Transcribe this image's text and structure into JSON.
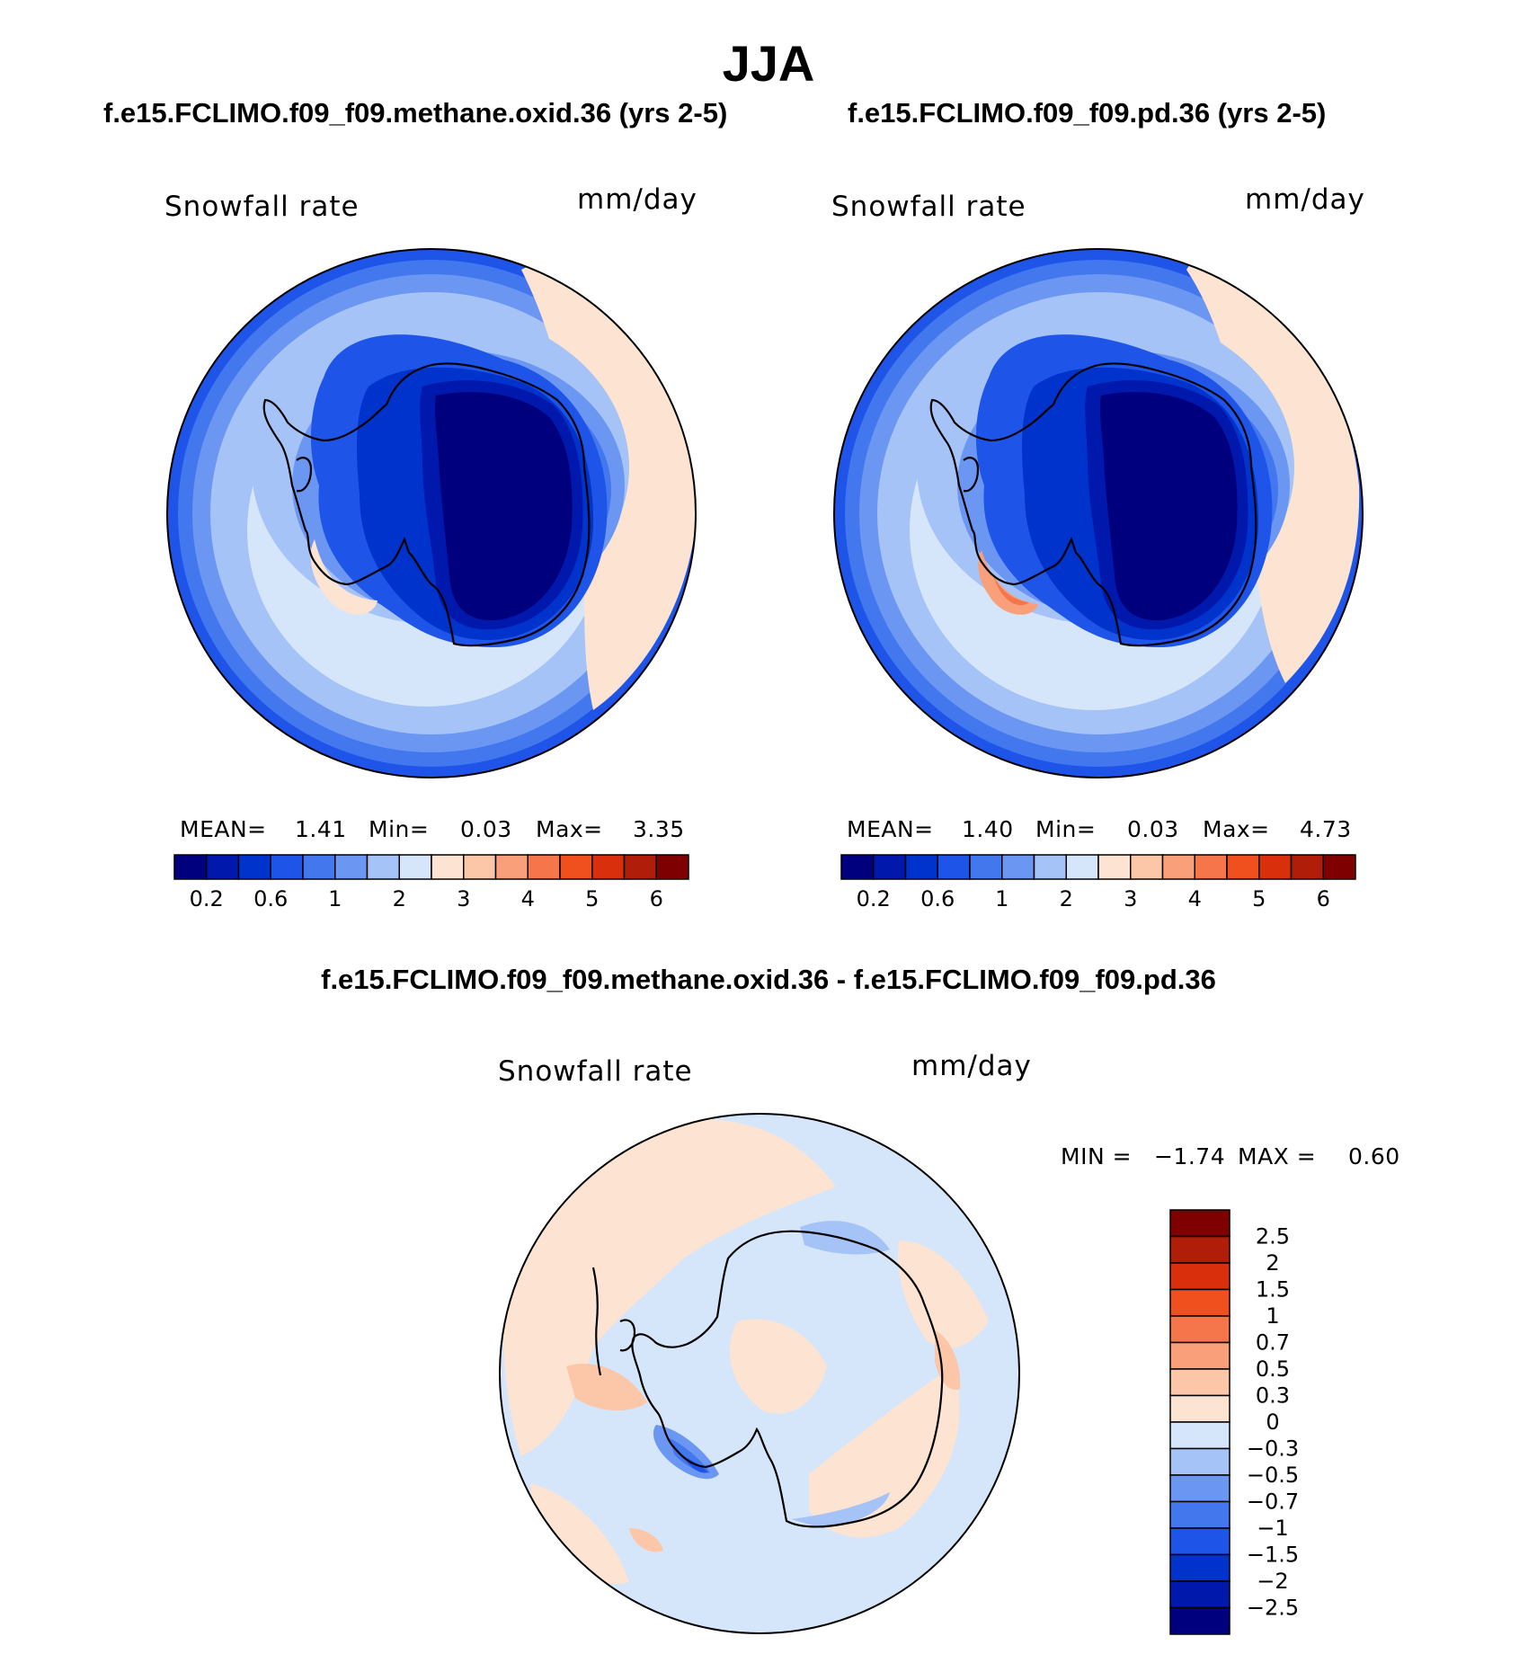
{
  "title": "JJA",
  "panels": [
    {
      "title": "f.e15.FCLIMO.f09_f09.methane.oxid.36 (yrs 2-5)",
      "variable": "Snowfall rate",
      "units": "mm/day",
      "stats": {
        "mean_label": "MEAN=",
        "mean": "1.41",
        "min_label": "Min=",
        "min": "0.03",
        "max_label": "Max=",
        "max": "3.35"
      },
      "colorbar_labels": [
        "0.2",
        "0.6",
        "1",
        "2",
        "3",
        "4",
        "5",
        "6"
      ]
    },
    {
      "title": "f.e15.FCLIMO.f09_f09.pd.36 (yrs 2-5)",
      "variable": "Snowfall rate",
      "units": "mm/day",
      "stats": {
        "mean_label": "MEAN=",
        "mean": "1.40",
        "min_label": "Min=",
        "min": "0.03",
        "max_label": "Max=",
        "max": "4.73"
      },
      "colorbar_labels": [
        "0.2",
        "0.6",
        "1",
        "2",
        "3",
        "4",
        "5",
        "6"
      ]
    }
  ],
  "difference": {
    "title": "f.e15.FCLIMO.f09_f09.methane.oxid.36 - f.e15.FCLIMO.f09_f09.pd.36",
    "variable": "Snowfall rate",
    "units": "mm/day",
    "min_label": "MIN =",
    "min": "−1.74",
    "max_label": "MAX =",
    "max": "0.60",
    "colorbar_labels": [
      "2.5",
      "2",
      "1.5",
      "1",
      "0.7",
      "0.5",
      "0.3",
      "0",
      "−0.3",
      "−0.5",
      "−0.7",
      "−1",
      "−1.5",
      "−2",
      "−2.5"
    ]
  },
  "colors": {
    "field_scale": [
      "#00007f",
      "#0018ab",
      "#0033cc",
      "#1e55e8",
      "#4277ee",
      "#6b97f2",
      "#a6c3f7",
      "#d6e6fa",
      "#fde3d1",
      "#fbc7a8",
      "#f9a07a",
      "#f6764b",
      "#f04f1e",
      "#d92f0c",
      "#b01d08",
      "#7f0000"
    ],
    "diff_scale": [
      "#7f0000",
      "#b01d08",
      "#d92f0c",
      "#f04f1e",
      "#f6764b",
      "#f9a07a",
      "#fbc7a8",
      "#fde3d1",
      "#d6e6fa",
      "#a6c3f7",
      "#6b97f2",
      "#4277ee",
      "#1e55e8",
      "#0033cc",
      "#0018ab",
      "#00007f"
    ]
  }
}
